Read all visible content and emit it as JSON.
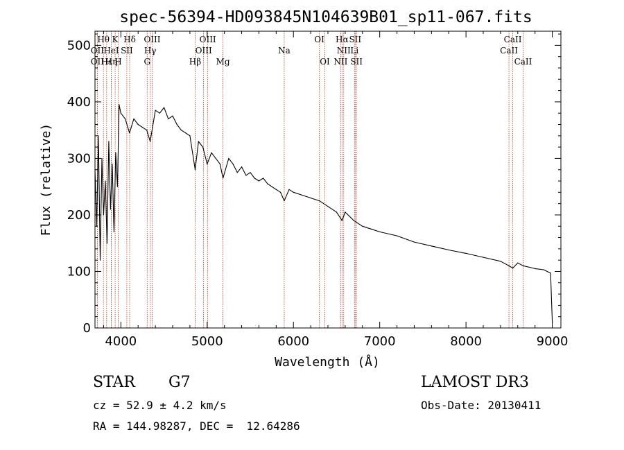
{
  "chart_data": {
    "type": "line",
    "title": "spec-56394-HD093845N104639B01_sp11-067.fits",
    "xlabel": "Wavelength (Å)",
    "ylabel": "Flux (relative)",
    "xlim": [
      3700,
      9100
    ],
    "ylim": [
      0,
      525
    ],
    "xticks": [
      4000,
      5000,
      6000,
      7000,
      8000,
      9000
    ],
    "xtick_labels": [
      "4000",
      "5000",
      "6000",
      "7000",
      "8000",
      "9000"
    ],
    "yticks": [
      0,
      100,
      200,
      300,
      400,
      500
    ],
    "ytick_labels": [
      "0",
      "100",
      "200",
      "300",
      "400",
      "500"
    ],
    "series": [
      {
        "name": "spectrum",
        "x": [
          3700,
          3720,
          3740,
          3760,
          3780,
          3800,
          3820,
          3840,
          3860,
          3880,
          3900,
          3920,
          3940,
          3960,
          3980,
          4000,
          4050,
          4100,
          4150,
          4200,
          4250,
          4300,
          4340,
          4400,
          4450,
          4500,
          4550,
          4600,
          4650,
          4700,
          4750,
          4800,
          4861,
          4900,
          4950,
          5000,
          5050,
          5100,
          5150,
          5183,
          5250,
          5300,
          5350,
          5400,
          5450,
          5500,
          5550,
          5600,
          5650,
          5700,
          5750,
          5800,
          5850,
          5893,
          5950,
          6000,
          6100,
          6200,
          6300,
          6400,
          6500,
          6563,
          6600,
          6700,
          6800,
          6900,
          7000,
          7200,
          7400,
          7600,
          7800,
          8000,
          8200,
          8400,
          8498,
          8542,
          8600,
          8662,
          8800,
          8900,
          8980,
          9000
        ],
        "y": [
          280,
          180,
          340,
          120,
          300,
          200,
          260,
          150,
          330,
          210,
          290,
          170,
          310,
          250,
          395,
          380,
          370,
          345,
          370,
          360,
          355,
          350,
          330,
          385,
          380,
          390,
          370,
          375,
          360,
          350,
          345,
          340,
          280,
          330,
          320,
          290,
          310,
          300,
          290,
          265,
          300,
          290,
          275,
          285,
          270,
          275,
          265,
          260,
          265,
          255,
          250,
          245,
          240,
          225,
          245,
          240,
          235,
          230,
          225,
          215,
          205,
          190,
          205,
          190,
          180,
          175,
          170,
          163,
          152,
          145,
          138,
          132,
          125,
          118,
          110,
          106,
          115,
          110,
          105,
          103,
          97,
          10
        ]
      }
    ],
    "lines": [
      {
        "label": "Hθ",
        "x": 3798,
        "row": 0
      },
      {
        "label": "OII",
        "x": 3727,
        "row": 1
      },
      {
        "label": "OII",
        "x": 3727,
        "row": 2
      },
      {
        "label": "Hε",
        "x": 3835,
        "row": 2
      },
      {
        "label": "Hη",
        "x": 3889,
        "row": 2
      },
      {
        "label": "HeI",
        "x": 3889,
        "row": 1
      },
      {
        "label": "K",
        "x": 3934,
        "row": 0
      },
      {
        "label": "SII",
        "x": 4069,
        "row": 1
      },
      {
        "label": "H",
        "x": 3969,
        "row": 2
      },
      {
        "label": "Hδ",
        "x": 4102,
        "row": 0
      },
      {
        "label": "OIII",
        "x": 4363,
        "row": 0
      },
      {
        "label": "Hγ",
        "x": 4340,
        "row": 1
      },
      {
        "label": "G",
        "x": 4305,
        "row": 2
      },
      {
        "label": "Hβ",
        "x": 4861,
        "row": 2
      },
      {
        "label": "OIII",
        "x": 5007,
        "row": 0
      },
      {
        "label": "OIII",
        "x": 4959,
        "row": 1
      },
      {
        "label": "Mg",
        "x": 5183,
        "row": 2
      },
      {
        "label": "Na",
        "x": 5893,
        "row": 1
      },
      {
        "label": "OI",
        "x": 6300,
        "row": 0
      },
      {
        "label": "OI",
        "x": 6364,
        "row": 2
      },
      {
        "label": "Hα",
        "x": 6563,
        "row": 0
      },
      {
        "label": "NII",
        "x": 6583,
        "row": 1
      },
      {
        "label": "NII",
        "x": 6548,
        "row": 2
      },
      {
        "label": "SII",
        "x": 6716,
        "row": 0
      },
      {
        "label": "Li",
        "x": 6708,
        "row": 1
      },
      {
        "label": "SII",
        "x": 6731,
        "row": 2
      },
      {
        "label": "CaII",
        "x": 8542,
        "row": 0
      },
      {
        "label": "CaII",
        "x": 8498,
        "row": 1
      },
      {
        "label": "CaII",
        "x": 8662,
        "row": 2
      }
    ]
  },
  "info": {
    "object_class": "STAR",
    "subclass": "G7",
    "survey": "LAMOST DR3",
    "redshift": "cz = 52.9 ± 4.2 km/s",
    "obs_date": "Obs-Date: 20130411",
    "coords": "RA = 144.98287, DEC =  12.64286"
  }
}
